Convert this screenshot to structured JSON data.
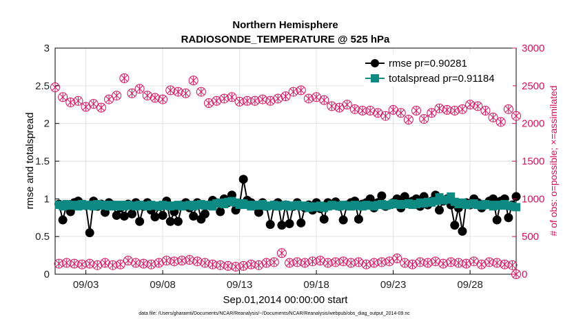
{
  "chart_data": {
    "type": "line",
    "title": "Northern Hemisphere",
    "subtitle": "RADIOSONDE_TEMPERATURE @ 525 hPa",
    "xlabel": "Sep.01,2014 00:00:00 start",
    "ylabel": "rmse and totalspread",
    "y2label": "# of obs: o=possible; ×=assimilated",
    "footnote": "data file: /Users/gharamti/Documents/NCAR/Reanalysis/~/Documents/NCAR/Reanalysis/webpub/obs_diag_output_2014-09.nc",
    "xlim": [
      1,
      31
    ],
    "ylim": [
      0,
      3
    ],
    "y2lim": [
      0,
      3000
    ],
    "xtick_values": [
      3,
      8,
      13,
      18,
      23,
      28
    ],
    "xtick_labels": [
      "09/03",
      "09/08",
      "09/13",
      "09/18",
      "09/23",
      "09/28"
    ],
    "yticks": [
      "0",
      "0.5",
      "1",
      "1.5",
      "2",
      "2.5",
      "3"
    ],
    "y2ticks": [
      "0",
      "500",
      "1000",
      "1500",
      "2000",
      "2500",
      "3000"
    ],
    "grid": true,
    "legend_position": "top-right",
    "series": [
      {
        "name": "rmse pr=0.90281",
        "axis": "left",
        "color": "#000000",
        "marker": "circle",
        "x": [
          1.25,
          1.5,
          1.75,
          2.0,
          2.25,
          2.5,
          2.75,
          3.0,
          3.25,
          3.5,
          3.75,
          4.0,
          4.25,
          4.5,
          4.75,
          5.0,
          5.25,
          5.5,
          5.75,
          6.0,
          6.25,
          6.5,
          6.75,
          7.0,
          7.25,
          7.5,
          7.75,
          8.0,
          8.25,
          8.5,
          8.75,
          9.0,
          9.25,
          9.5,
          9.75,
          10.0,
          10.25,
          10.5,
          10.75,
          11.0,
          11.25,
          11.5,
          11.75,
          12.0,
          12.25,
          12.5,
          12.75,
          13.0,
          13.25,
          13.5,
          13.75,
          14.0,
          14.25,
          14.5,
          14.75,
          15.0,
          15.25,
          15.5,
          15.75,
          16.0,
          16.25,
          16.5,
          16.75,
          17.0,
          17.25,
          17.5,
          17.75,
          18.0,
          18.25,
          18.5,
          18.75,
          19.0,
          19.25,
          19.5,
          19.75,
          20.0,
          20.25,
          20.5,
          20.75,
          21.0,
          21.25,
          21.5,
          21.75,
          22.0,
          22.25,
          22.5,
          22.75,
          23.0,
          23.25,
          23.5,
          23.75,
          24.0,
          24.25,
          24.5,
          24.75,
          25.0,
          25.25,
          25.5,
          25.75,
          26.0,
          26.25,
          26.5,
          26.75,
          27.0,
          27.25,
          27.5,
          27.75,
          28.0,
          28.25,
          28.5,
          28.75,
          29.0,
          29.25,
          29.5,
          29.75,
          30.0,
          30.25,
          30.5,
          30.75,
          31.0
        ],
        "y": [
          0.93,
          0.72,
          0.92,
          0.83,
          0.95,
          0.97,
          0.93,
          0.91,
          0.55,
          0.97,
          0.9,
          0.93,
          0.82,
          0.95,
          0.92,
          0.78,
          0.88,
          0.77,
          0.93,
          0.8,
          0.95,
          0.7,
          0.9,
          0.95,
          0.85,
          0.76,
          0.9,
          0.78,
          0.97,
          0.7,
          0.83,
          0.7,
          0.92,
          0.95,
          0.88,
          0.77,
          0.95,
          0.73,
          0.8,
          0.92,
          0.98,
          0.95,
          0.83,
          1.0,
          0.95,
          1.05,
          0.85,
          0.92,
          1.26,
          0.98,
          0.95,
          0.9,
          0.82,
          0.95,
          0.9,
          0.66,
          0.92,
          0.95,
          0.65,
          0.92,
          0.67,
          0.9,
          0.95,
          0.68,
          0.88,
          0.92,
          0.85,
          0.95,
          0.87,
          0.73,
          0.95,
          0.92,
          0.96,
          0.9,
          0.72,
          0.92,
          0.95,
          0.97,
          0.73,
          0.93,
          0.95,
          1.0,
          0.88,
          0.95,
          1.04,
          0.9,
          0.92,
          0.95,
          1.0,
          0.88,
          1.03,
          0.95,
          0.97,
          1.0,
          0.9,
          1.03,
          0.92,
          0.97,
          1.05,
          0.85,
          0.97,
          1.0,
          0.92,
          0.65,
          0.88,
          0.57,
          0.95,
          0.92,
          1.0,
          0.95,
          0.88,
          0.92,
          0.97,
          1.0,
          0.72,
          0.97,
          1.0,
          0.75,
          0.92,
          1.03
        ]
      },
      {
        "name": "totalspread pr=0.91184",
        "axis": "left",
        "color": "#0d8a82",
        "marker": "square",
        "x": [
          1.25,
          1.5,
          1.75,
          2.0,
          2.25,
          2.5,
          2.75,
          3.0,
          3.25,
          3.5,
          3.75,
          4.0,
          4.25,
          4.5,
          4.75,
          5.0,
          5.25,
          5.5,
          5.75,
          6.0,
          6.25,
          6.5,
          6.75,
          7.0,
          7.25,
          7.5,
          7.75,
          8.0,
          8.25,
          8.5,
          8.75,
          9.0,
          9.25,
          9.5,
          9.75,
          10.0,
          10.25,
          10.5,
          10.75,
          11.0,
          11.25,
          11.5,
          11.75,
          12.0,
          12.25,
          12.5,
          12.75,
          13.0,
          13.25,
          13.5,
          13.75,
          14.0,
          14.25,
          14.5,
          14.75,
          15.0,
          15.25,
          15.5,
          15.75,
          16.0,
          16.25,
          16.5,
          16.75,
          17.0,
          17.25,
          17.5,
          17.75,
          18.0,
          18.25,
          18.5,
          18.75,
          19.0,
          19.25,
          19.5,
          19.75,
          20.0,
          20.25,
          20.5,
          20.75,
          21.0,
          21.25,
          21.5,
          21.75,
          22.0,
          22.25,
          22.5,
          22.75,
          23.0,
          23.25,
          23.5,
          23.75,
          24.0,
          24.25,
          24.5,
          24.75,
          25.0,
          25.25,
          25.5,
          25.75,
          26.0,
          26.25,
          26.5,
          26.75,
          27.0,
          27.25,
          27.5,
          27.75,
          28.0,
          28.25,
          28.5,
          28.75,
          29.0,
          29.25,
          29.5,
          29.75,
          30.0,
          30.25,
          30.5,
          30.75,
          31.0
        ],
        "y": [
          0.92,
          0.9,
          0.93,
          0.91,
          0.92,
          0.9,
          0.93,
          0.91,
          0.92,
          0.9,
          0.93,
          0.91,
          0.92,
          0.9,
          0.92,
          0.9,
          0.92,
          0.9,
          0.92,
          0.91,
          0.9,
          0.92,
          0.91,
          0.9,
          0.92,
          0.91,
          0.9,
          0.92,
          0.91,
          0.9,
          0.91,
          0.92,
          0.9,
          0.91,
          0.92,
          0.9,
          0.92,
          0.93,
          0.91,
          0.92,
          0.9,
          0.94,
          0.95,
          0.93,
          0.96,
          0.97,
          0.95,
          0.92,
          0.94,
          0.92,
          0.9,
          0.92,
          0.91,
          0.93,
          0.9,
          0.91,
          0.92,
          0.9,
          0.91,
          0.92,
          0.9,
          0.91,
          0.92,
          0.9,
          0.91,
          0.88,
          0.9,
          0.89,
          0.91,
          0.88,
          0.9,
          0.92,
          0.91,
          0.9,
          0.92,
          0.91,
          0.9,
          0.92,
          0.91,
          0.9,
          0.92,
          0.91,
          0.9,
          0.92,
          0.93,
          0.91,
          0.92,
          0.94,
          0.93,
          0.92,
          0.93,
          0.94,
          0.92,
          0.93,
          0.95,
          0.94,
          0.96,
          0.95,
          0.97,
          1.02,
          0.98,
          0.99,
          1.03,
          0.96,
          0.93,
          0.95,
          0.92,
          0.93,
          0.94,
          0.92,
          0.91,
          0.93,
          0.92,
          0.9,
          0.92,
          0.91,
          0.93,
          0.91,
          0.9,
          0.89
        ]
      },
      {
        "name": "# of obs possible",
        "axis": "right",
        "color": "#d40f5e",
        "marker": "circle-open",
        "x": [
          1.0,
          1.5,
          2.0,
          2.5,
          3.0,
          3.5,
          4.0,
          4.5,
          5.0,
          5.5,
          6.0,
          6.5,
          7.0,
          7.5,
          8.0,
          8.5,
          9.0,
          9.5,
          10.0,
          10.5,
          11.0,
          11.5,
          12.0,
          12.5,
          13.0,
          13.5,
          14.0,
          14.5,
          15.0,
          15.5,
          16.0,
          16.5,
          17.0,
          17.5,
          18.0,
          18.5,
          19.0,
          19.5,
          20.0,
          20.5,
          21.0,
          21.5,
          22.0,
          22.5,
          23.0,
          23.5,
          24.0,
          24.5,
          25.0,
          25.5,
          26.0,
          26.5,
          27.0,
          27.5,
          28.0,
          28.5,
          29.0,
          29.5,
          30.0,
          30.5,
          31.0
        ],
        "y": [
          2480,
          2350,
          2280,
          2300,
          2220,
          2260,
          2210,
          2320,
          2370,
          2600,
          2400,
          2460,
          2370,
          2340,
          2320,
          2440,
          2420,
          2400,
          2570,
          2420,
          2270,
          2300,
          2330,
          2350,
          2290,
          2300,
          2300,
          2320,
          2300,
          2330,
          2360,
          2420,
          2440,
          2330,
          2350,
          2310,
          2230,
          2210,
          2250,
          2190,
          2170,
          2170,
          2140,
          2100,
          2180,
          2140,
          2050,
          2170,
          2060,
          2140,
          2200,
          2180,
          2170,
          2190,
          2250,
          2230,
          2170,
          2080,
          2020,
          2190,
          2100
        ],
        "y_raw_note": ""
      },
      {
        "name": "# of obs possible (lower)",
        "axis": "right",
        "color": "#d40f5e",
        "marker": "circle-open",
        "x": [
          1.25,
          1.75,
          2.25,
          2.75,
          3.25,
          3.75,
          4.25,
          4.75,
          5.25,
          5.75,
          6.25,
          6.75,
          7.25,
          7.75,
          8.25,
          8.75,
          9.25,
          9.75,
          10.25,
          10.75,
          11.25,
          11.75,
          12.25,
          12.75,
          13.25,
          13.75,
          14.25,
          14.75,
          15.25,
          15.75,
          16.25,
          16.75,
          17.25,
          17.75,
          18.25,
          18.75,
          19.25,
          19.75,
          20.25,
          20.75,
          21.25,
          21.75,
          22.25,
          22.75,
          23.25,
          23.75,
          24.25,
          24.75,
          25.25,
          25.75,
          26.25,
          26.75,
          27.25,
          27.75,
          28.25,
          28.75,
          29.25,
          29.75,
          30.25,
          30.75,
          31.0
        ],
        "y": [
          140,
          150,
          140,
          130,
          140,
          120,
          150,
          120,
          130,
          180,
          150,
          140,
          130,
          150,
          180,
          170,
          180,
          190,
          170,
          150,
          130,
          120,
          110,
          100,
          110,
          130,
          120,
          150,
          160,
          280,
          150,
          160,
          150,
          170,
          180,
          150,
          160,
          170,
          150,
          160,
          130,
          150,
          160,
          170,
          210,
          150,
          130,
          160,
          150,
          170,
          140,
          160,
          150,
          140,
          170,
          130,
          160,
          150,
          130,
          120,
          0
        ]
      }
    ]
  }
}
